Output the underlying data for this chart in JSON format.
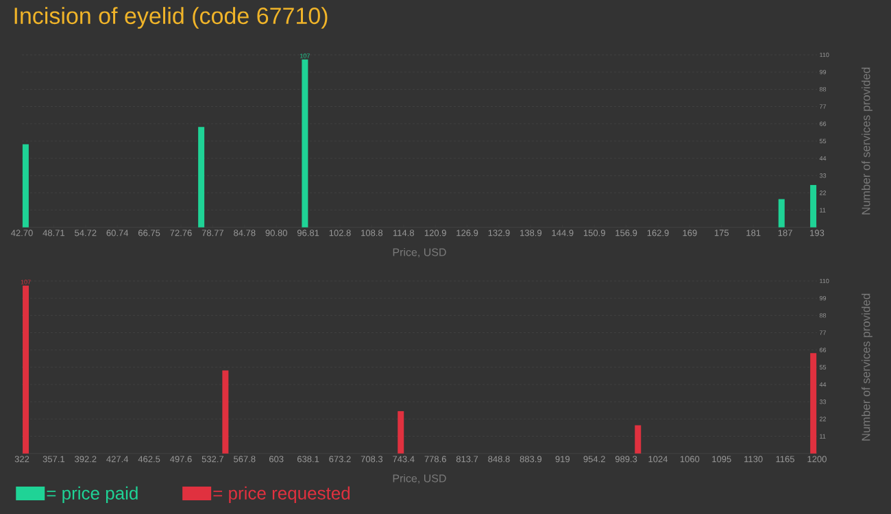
{
  "chart_data": [
    {
      "type": "bar",
      "title": "Incision of eyelid (code 67710)",
      "xlabel": "Price, USD",
      "ylabel": "Number of services provided",
      "x": [
        43.4,
        76.6,
        96.2,
        186.3,
        192.3
      ],
      "series": [
        {
          "name": "= price paid",
          "color": "#1fd396",
          "values": [
            53,
            64,
            107,
            18,
            27
          ],
          "value_labels": [
            null,
            null,
            "107",
            null,
            null
          ]
        }
      ],
      "xlim": [
        42.7,
        193
      ],
      "ylim": [
        0,
        110
      ],
      "xticks": [
        {
          "value": 42.7,
          "label": "42.70"
        },
        {
          "value": 48.712,
          "label": "48.71"
        },
        {
          "value": 54.724,
          "label": "54.72"
        },
        {
          "value": 60.736,
          "label": "60.74"
        },
        {
          "value": 66.748,
          "label": "66.75"
        },
        72.76,
        {
          "value": 78.772,
          "label": "78.77"
        },
        {
          "value": 84.784,
          "label": "84.78"
        },
        {
          "value": 90.796,
          "label": "90.80"
        },
        {
          "value": 96.808,
          "label": "96.81"
        },
        {
          "value": 102.82,
          "label": "102.8"
        },
        {
          "value": 108.832,
          "label": "108.8"
        },
        {
          "value": 114.844,
          "label": "114.8"
        },
        {
          "value": 120.856,
          "label": "120.9"
        },
        {
          "value": 126.868,
          "label": "126.9"
        },
        {
          "value": 132.88,
          "label": "132.9"
        },
        {
          "value": 138.892,
          "label": "138.9"
        },
        {
          "value": 144.904,
          "label": "144.9"
        },
        {
          "value": 150.916,
          "label": "150.9"
        },
        {
          "value": 156.928,
          "label": "156.9"
        },
        {
          "value": 162.94,
          "label": "162.9"
        },
        {
          "value": 168.952,
          "label": "169"
        },
        {
          "value": 174.964,
          "label": "175"
        },
        {
          "value": 180.976,
          "label": "181"
        },
        {
          "value": 186.988,
          "label": "187"
        },
        193
      ],
      "yticks": [
        11,
        22,
        33,
        44,
        55,
        66,
        77,
        88,
        99,
        110
      ],
      "grid": "y",
      "legend": "bottom"
    },
    {
      "type": "bar",
      "xlabel": "Price, USD",
      "ylabel": "Number of services provided",
      "x": [
        326.2,
        546.7,
        740.4,
        1002.3,
        1196
      ],
      "series": [
        {
          "name": "= price requested",
          "color": "#e0313f",
          "values": [
            107,
            53,
            27,
            18,
            64
          ],
          "value_labels": [
            "107",
            null,
            null,
            null,
            null
          ]
        }
      ],
      "xlim": [
        322,
        1200
      ],
      "ylim": [
        0,
        110
      ],
      "xticks": [
        322,
        {
          "value": 357.12,
          "label": "357.1"
        },
        {
          "value": 392.24,
          "label": "392.2"
        },
        {
          "value": 427.36,
          "label": "427.4"
        },
        {
          "value": 462.48,
          "label": "462.5"
        },
        497.6,
        {
          "value": 532.72,
          "label": "532.7"
        },
        {
          "value": 567.84,
          "label": "567.8"
        },
        {
          "value": 602.96,
          "label": "603"
        },
        {
          "value": 638.08,
          "label": "638.1"
        },
        673.2,
        {
          "value": 708.32,
          "label": "708.3"
        },
        {
          "value": 743.44,
          "label": "743.4"
        },
        {
          "value": 778.56,
          "label": "778.6"
        },
        {
          "value": 813.68,
          "label": "813.7"
        },
        848.8,
        {
          "value": 883.92,
          "label": "883.9"
        },
        {
          "value": 919.04,
          "label": "919"
        },
        {
          "value": 954.16,
          "label": "954.2"
        },
        {
          "value": 989.28,
          "label": "989.3"
        },
        {
          "value": 1024.4,
          "label": "1024"
        },
        {
          "value": 1059.52,
          "label": "1060"
        },
        {
          "value": 1094.64,
          "label": "1095"
        },
        {
          "value": 1129.76,
          "label": "1130"
        },
        {
          "value": 1164.88,
          "label": "1165"
        },
        1200
      ],
      "yticks": [
        11,
        22,
        33,
        44,
        55,
        66,
        77,
        88,
        99,
        110
      ],
      "grid": "y",
      "legend": "bottom"
    }
  ]
}
